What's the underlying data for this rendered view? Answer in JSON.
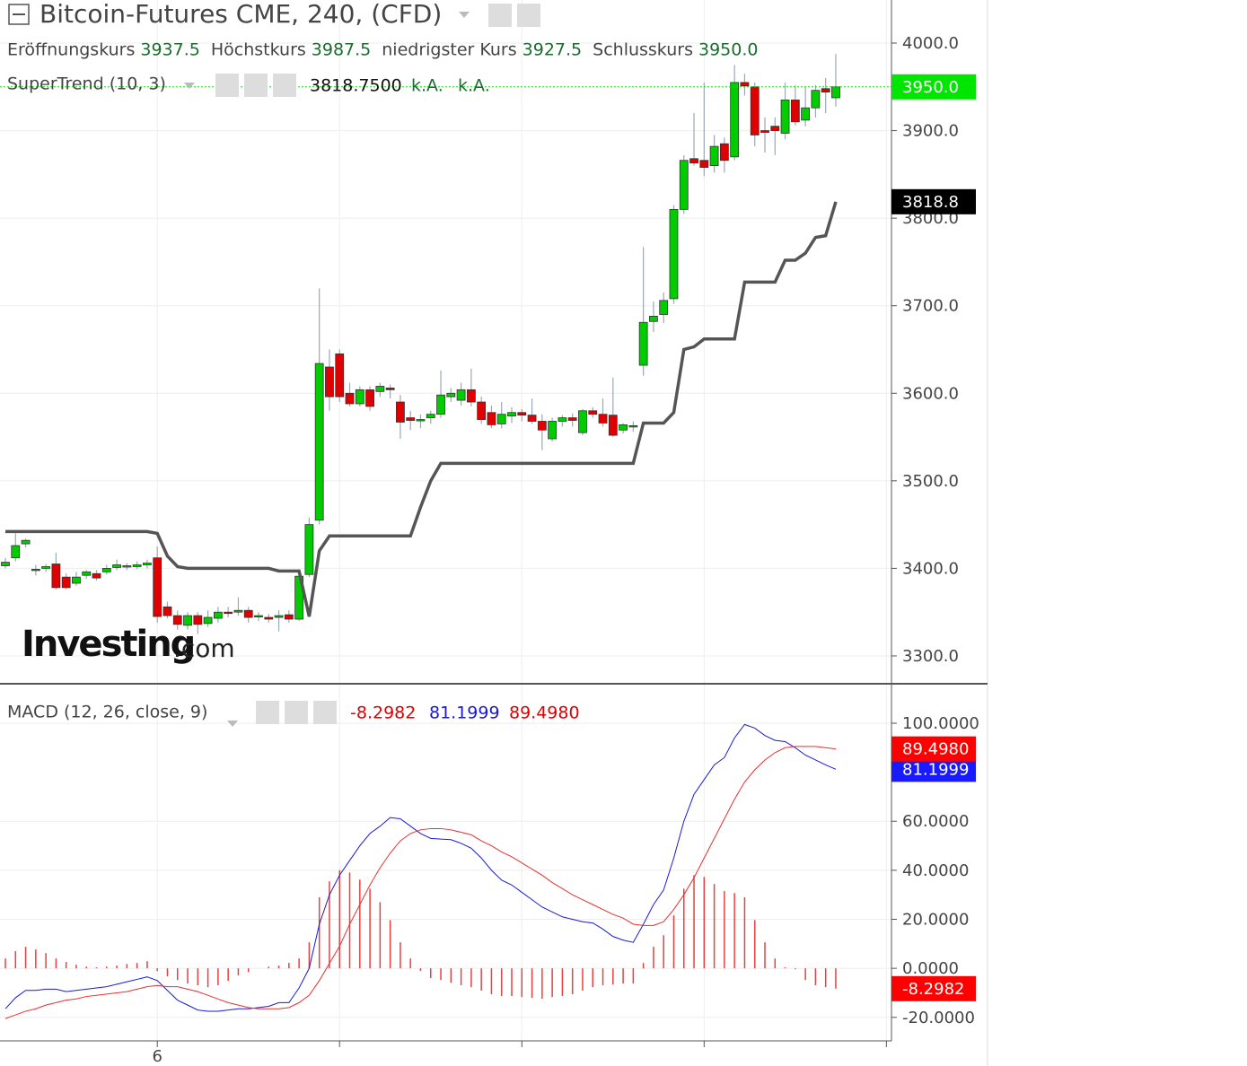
{
  "chart_data": [
    {
      "type": "candlestick",
      "title": "Bitcoin-Futures CME, 240, (CFD)",
      "ohlc_legend": [
        {
          "label": "Eröffnungskurs",
          "value": "3937.5"
        },
        {
          "label": "Höchstkurs",
          "value": "3987.5"
        },
        {
          "label": "niedrigster Kurs",
          "value": "3927.5"
        },
        {
          "label": "Schlusskurs",
          "value": "3950.0"
        }
      ],
      "watermark": [
        "Investing",
        ".com"
      ],
      "categories": [
        null,
        null,
        null,
        null,
        null,
        null,
        null,
        null,
        null,
        null,
        null,
        null,
        null,
        null,
        null,
        "6",
        null,
        null,
        null,
        null,
        null,
        null,
        null,
        null,
        null,
        null,
        null,
        null,
        null,
        null,
        null,
        null,
        null,
        null,
        null,
        null,
        null,
        null,
        null,
        null,
        null,
        null,
        null,
        null,
        null,
        null,
        null,
        null,
        null,
        null,
        null,
        null,
        null,
        null,
        null,
        null,
        null,
        null,
        null,
        null,
        null,
        null,
        null,
        null,
        null,
        null,
        null,
        null,
        null,
        null,
        null,
        null,
        null,
        null,
        null,
        null,
        null,
        null,
        null,
        null,
        null,
        null,
        null
      ],
      "open": [
        3403,
        3412,
        3428,
        3399,
        3400,
        3405,
        3390,
        3383,
        3392,
        3394,
        3396,
        3401,
        3402,
        3402,
        3404,
        3412,
        3356,
        3346,
        3335,
        3346,
        3337,
        3343,
        3350,
        3350,
        3352,
        3345,
        3344,
        3344,
        3347,
        3342,
        3393,
        3455,
        3630,
        3645,
        3600,
        3588,
        3604,
        3602,
        3606,
        3590,
        3572,
        3570,
        3572,
        3576,
        3596,
        3592,
        3604,
        3590,
        3578,
        3565,
        3574,
        3578,
        3575,
        3568,
        3548,
        3568,
        3572,
        3555,
        3580,
        3576,
        3575,
        3558,
        3562,
        3632,
        3682,
        3690,
        3708,
        3810,
        3868,
        3866,
        3860,
        3885,
        3870,
        3955,
        3950,
        3900,
        3905,
        3897,
        3935,
        3912,
        3926,
        3948,
        3937.5
      ],
      "high": [
        3412,
        3440,
        3434,
        3404,
        3405,
        3418,
        3394,
        3396,
        3398,
        3398,
        3404,
        3410,
        3406,
        3408,
        3410,
        3425,
        3362,
        3352,
        3350,
        3350,
        3352,
        3356,
        3356,
        3367,
        3356,
        3350,
        3348,
        3352,
        3352,
        3395,
        3458,
        3720,
        3650,
        3650,
        3612,
        3608,
        3608,
        3612,
        3610,
        3598,
        3580,
        3576,
        3580,
        3626,
        3606,
        3612,
        3628,
        3596,
        3586,
        3590,
        3584,
        3582,
        3594,
        3576,
        3572,
        3575,
        3577,
        3582,
        3584,
        3594,
        3618,
        3566,
        3568,
        3767,
        3705,
        3715,
        3815,
        3872,
        3920,
        3955,
        3895,
        3892,
        3975,
        3965,
        3955,
        3915,
        3915,
        3955,
        3952,
        3950,
        3952,
        3960,
        3987.5
      ],
      "low": [
        3400,
        3408,
        3424,
        3392,
        3396,
        3376,
        3376,
        3380,
        3388,
        3386,
        3393,
        3398,
        3398,
        3399,
        3400,
        3338,
        3343,
        3330,
        3330,
        3325,
        3333,
        3338,
        3344,
        3346,
        3338,
        3340,
        3338,
        3328,
        3338,
        3340,
        3390,
        3450,
        3580,
        3590,
        3585,
        3585,
        3580,
        3596,
        3594,
        3548,
        3558,
        3560,
        3565,
        3572,
        3590,
        3586,
        3585,
        3565,
        3560,
        3560,
        3566,
        3568,
        3565,
        3535,
        3545,
        3562,
        3562,
        3552,
        3572,
        3562,
        3550,
        3554,
        3556,
        3620,
        3670,
        3680,
        3702,
        3805,
        3860,
        3848,
        3852,
        3852,
        3866,
        3940,
        3882,
        3875,
        3872,
        3890,
        3906,
        3905,
        3915,
        3920,
        3927.5
      ],
      "close": [
        3407,
        3426,
        3432,
        3399,
        3402,
        3378,
        3378,
        3390,
        3396,
        3389,
        3400,
        3404,
        3403,
        3404,
        3406,
        3345,
        3346,
        3336,
        3346,
        3336,
        3344,
        3350,
        3349,
        3352,
        3344,
        3346,
        3342,
        3346,
        3342,
        3391,
        3450,
        3634,
        3596,
        3596,
        3588,
        3604,
        3585,
        3608,
        3604,
        3567,
        3569,
        3570,
        3576,
        3598,
        3600,
        3604,
        3590,
        3570,
        3564,
        3576,
        3578,
        3575,
        3568,
        3558,
        3568,
        3572,
        3569,
        3580,
        3576,
        3566,
        3552,
        3564,
        3563,
        3681,
        3688,
        3706,
        3810,
        3866,
        3863,
        3858,
        3882,
        3866,
        3955,
        3951,
        3895,
        3898,
        3900,
        3935,
        3910,
        3926,
        3946,
        3944,
        3950
      ],
      "up_color": "#00cc00",
      "down_color": "#e00000",
      "close_tag": "3950.0",
      "close_tag_color": "#00e600",
      "series": [
        {
          "name": "SuperTrend (10, 3)",
          "color": "#555555",
          "values": [
            3442,
            3442,
            3442,
            3442,
            3442,
            3442,
            3442,
            3442,
            3442,
            3442,
            3442,
            3442,
            3442,
            3442,
            3442,
            3440,
            3414,
            3402,
            3400,
            3400,
            3400,
            3400,
            3400,
            3400,
            3400,
            3400,
            3400,
            3397,
            3397,
            3397,
            3345,
            3420,
            3437,
            3437,
            3437,
            3437,
            3437,
            3437,
            3437,
            3437,
            3437,
            3470,
            3500,
            3520,
            3520,
            3520,
            3520,
            3520,
            3520,
            3520,
            3520,
            3520,
            3520,
            3520,
            3520,
            3520,
            3520,
            3520,
            3520,
            3520,
            3520,
            3520,
            3520,
            3566,
            3566,
            3566,
            3578,
            3650,
            3653,
            3662,
            3662,
            3662,
            3662,
            3727,
            3727,
            3727,
            3727,
            3752,
            3752,
            3760,
            3778,
            3780,
            3818.75
          ],
          "last_label": "3818.7500",
          "na_labels": [
            "k.A.",
            "k.A."
          ],
          "tag": "3818.8"
        }
      ],
      "ylim": [
        3268.2,
        4049.2
      ],
      "yticks": [
        {
          "value": 3300,
          "label": "3300.0"
        },
        {
          "value": 3400,
          "label": "3400.0"
        },
        {
          "value": 3500,
          "label": "3500.0"
        },
        {
          "value": 3600,
          "label": "3600.0"
        },
        {
          "value": 3700,
          "label": "3700.0"
        },
        {
          "value": 3800,
          "label": "3800.0"
        },
        {
          "value": 3900,
          "label": "3900.0"
        },
        {
          "value": 4000,
          "label": "4000.0"
        }
      ],
      "grid": true
    },
    {
      "type": "macd",
      "title": "MACD (12, 26, close, 9)",
      "series": [
        {
          "name": "histogram",
          "kind": "bars",
          "color": "#e84040",
          "last_label": "-8.2982",
          "tag_color": "#ff0000",
          "values": [
            4,
            7,
            8.8,
            7.7,
            6.2,
            4,
            2.6,
            1.5,
            0.7,
            0.4,
            0.7,
            1.1,
            1.8,
            2.2,
            2.9,
            -1.1,
            -3.3,
            -4.8,
            -6.2,
            -6.9,
            -7.7,
            -6.9,
            -5.1,
            -2.9,
            -1.5,
            0,
            0.7,
            1.1,
            2.2,
            4,
            10.6,
            29,
            35.5,
            40,
            39.1,
            36.2,
            32.5,
            27,
            19.7,
            10.6,
            4,
            -1.1,
            -4,
            -4.8,
            -5.9,
            -6.9,
            -7.7,
            -9.1,
            -10.6,
            -11.3,
            -11.3,
            -11.7,
            -12.1,
            -12.4,
            -11.7,
            -11.3,
            -10.6,
            -9.1,
            -7.7,
            -6.9,
            -6.6,
            -6.2,
            -6.2,
            2.2,
            8.8,
            13.5,
            21.6,
            32.5,
            38,
            37.3,
            34.4,
            31.5,
            30.7,
            29,
            19.7,
            10.6,
            4,
            0.4,
            -0.4,
            -4.8,
            -6.9,
            -7.7,
            -8.2982
          ]
        },
        {
          "name": "MACD",
          "kind": "line",
          "color": "#1a1ad6",
          "last_label": "81.1999",
          "tag_color": "#1a1aff",
          "values": [
            -16.5,
            -12,
            -9,
            -9,
            -8.5,
            -8.5,
            -9.5,
            -9,
            -8.5,
            -8,
            -7.5,
            -6.5,
            -5.5,
            -4.5,
            -3.5,
            -5,
            -9,
            -13,
            -15,
            -17,
            -17.5,
            -17.5,
            -17,
            -16.5,
            -16.5,
            -16,
            -15.5,
            -14,
            -14,
            -8,
            0,
            18,
            30,
            38,
            44,
            50,
            55,
            58,
            61.5,
            61,
            58,
            55,
            53,
            52.7,
            52.5,
            51,
            49,
            45,
            40,
            36,
            34,
            31,
            28,
            25,
            23,
            21,
            20,
            19,
            18.5,
            16,
            13,
            11.5,
            10.6,
            18,
            26,
            32,
            45,
            60,
            71,
            77,
            83,
            86,
            94,
            99.5,
            98,
            95,
            93,
            92.5,
            90,
            87,
            85,
            83,
            81.1999
          ]
        },
        {
          "name": "Signal",
          "kind": "line",
          "color": "#e83030",
          "last_label": "89.4980",
          "tag_color": "#ff0000",
          "values": [
            -20.5,
            -19,
            -17.5,
            -16.5,
            -15,
            -14,
            -13,
            -12.5,
            -11.5,
            -11,
            -10.5,
            -10,
            -9.5,
            -8.5,
            -7.5,
            -7,
            -7.5,
            -7.5,
            -8.5,
            -9.5,
            -11,
            -12.5,
            -14,
            -15,
            -16,
            -16.5,
            -16.5,
            -16.5,
            -16,
            -14,
            -11,
            -5,
            2,
            9,
            18,
            26,
            34,
            41,
            47,
            52,
            55,
            56.5,
            57,
            57,
            56.5,
            55.5,
            54.5,
            52,
            50,
            47.5,
            45.5,
            43,
            40.5,
            38,
            35,
            32.5,
            30,
            28,
            26,
            24,
            22,
            20.5,
            18,
            17.5,
            17.5,
            19,
            24,
            30,
            37,
            45,
            53,
            61,
            69,
            76,
            81,
            85,
            88,
            90,
            90.5,
            90.5,
            90.5,
            90,
            89.498
          ]
        }
      ],
      "ylim": [
        -29.6,
        116.1
      ],
      "yticks": [
        {
          "value": -20,
          "label": "-20.0000"
        },
        {
          "value": 0,
          "label": "0.0000"
        },
        {
          "value": 20,
          "label": "20.0000"
        },
        {
          "value": 40,
          "label": "40.0000"
        },
        {
          "value": 60,
          "label": "60.0000"
        },
        {
          "value": 100,
          "label": "100.0000"
        }
      ],
      "grid": true
    }
  ]
}
